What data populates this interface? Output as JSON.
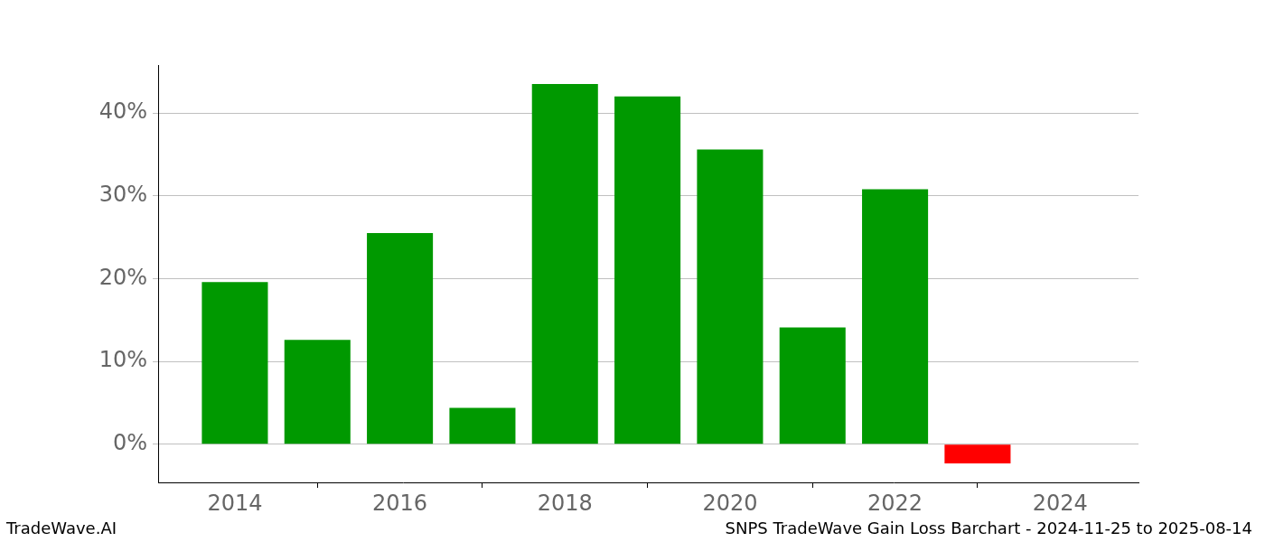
{
  "chart_data": {
    "type": "bar",
    "footer": {
      "left": "TradeWave.AI",
      "right": "SNPS TradeWave Gain Loss Barchart - 2024-11-25 to 2025-08-14"
    },
    "x": [
      2014,
      2015,
      2016,
      2017,
      2018,
      2019,
      2020,
      2021,
      2022,
      2023
    ],
    "values": [
      19.6,
      12.6,
      25.5,
      4.4,
      43.5,
      42.0,
      35.6,
      14.1,
      30.8,
      -2.3
    ],
    "colors": [
      "#009900",
      "#009900",
      "#009900",
      "#009900",
      "#009900",
      "#009900",
      "#009900",
      "#009900",
      "#009900",
      "#ff0000"
    ],
    "xlim": [
      2013.07,
      2024.95
    ],
    "xticks": [
      2014,
      2016,
      2018,
      2020,
      2022,
      2024
    ],
    "ylim": [
      -4.6,
      45.8
    ],
    "yticks": [
      {
        "value": 0,
        "label": "0%"
      },
      {
        "value": 10,
        "label": "10%"
      },
      {
        "value": 20,
        "label": "20%"
      },
      {
        "value": 30,
        "label": "30%"
      },
      {
        "value": 40,
        "label": "40%"
      }
    ],
    "grid": true
  }
}
